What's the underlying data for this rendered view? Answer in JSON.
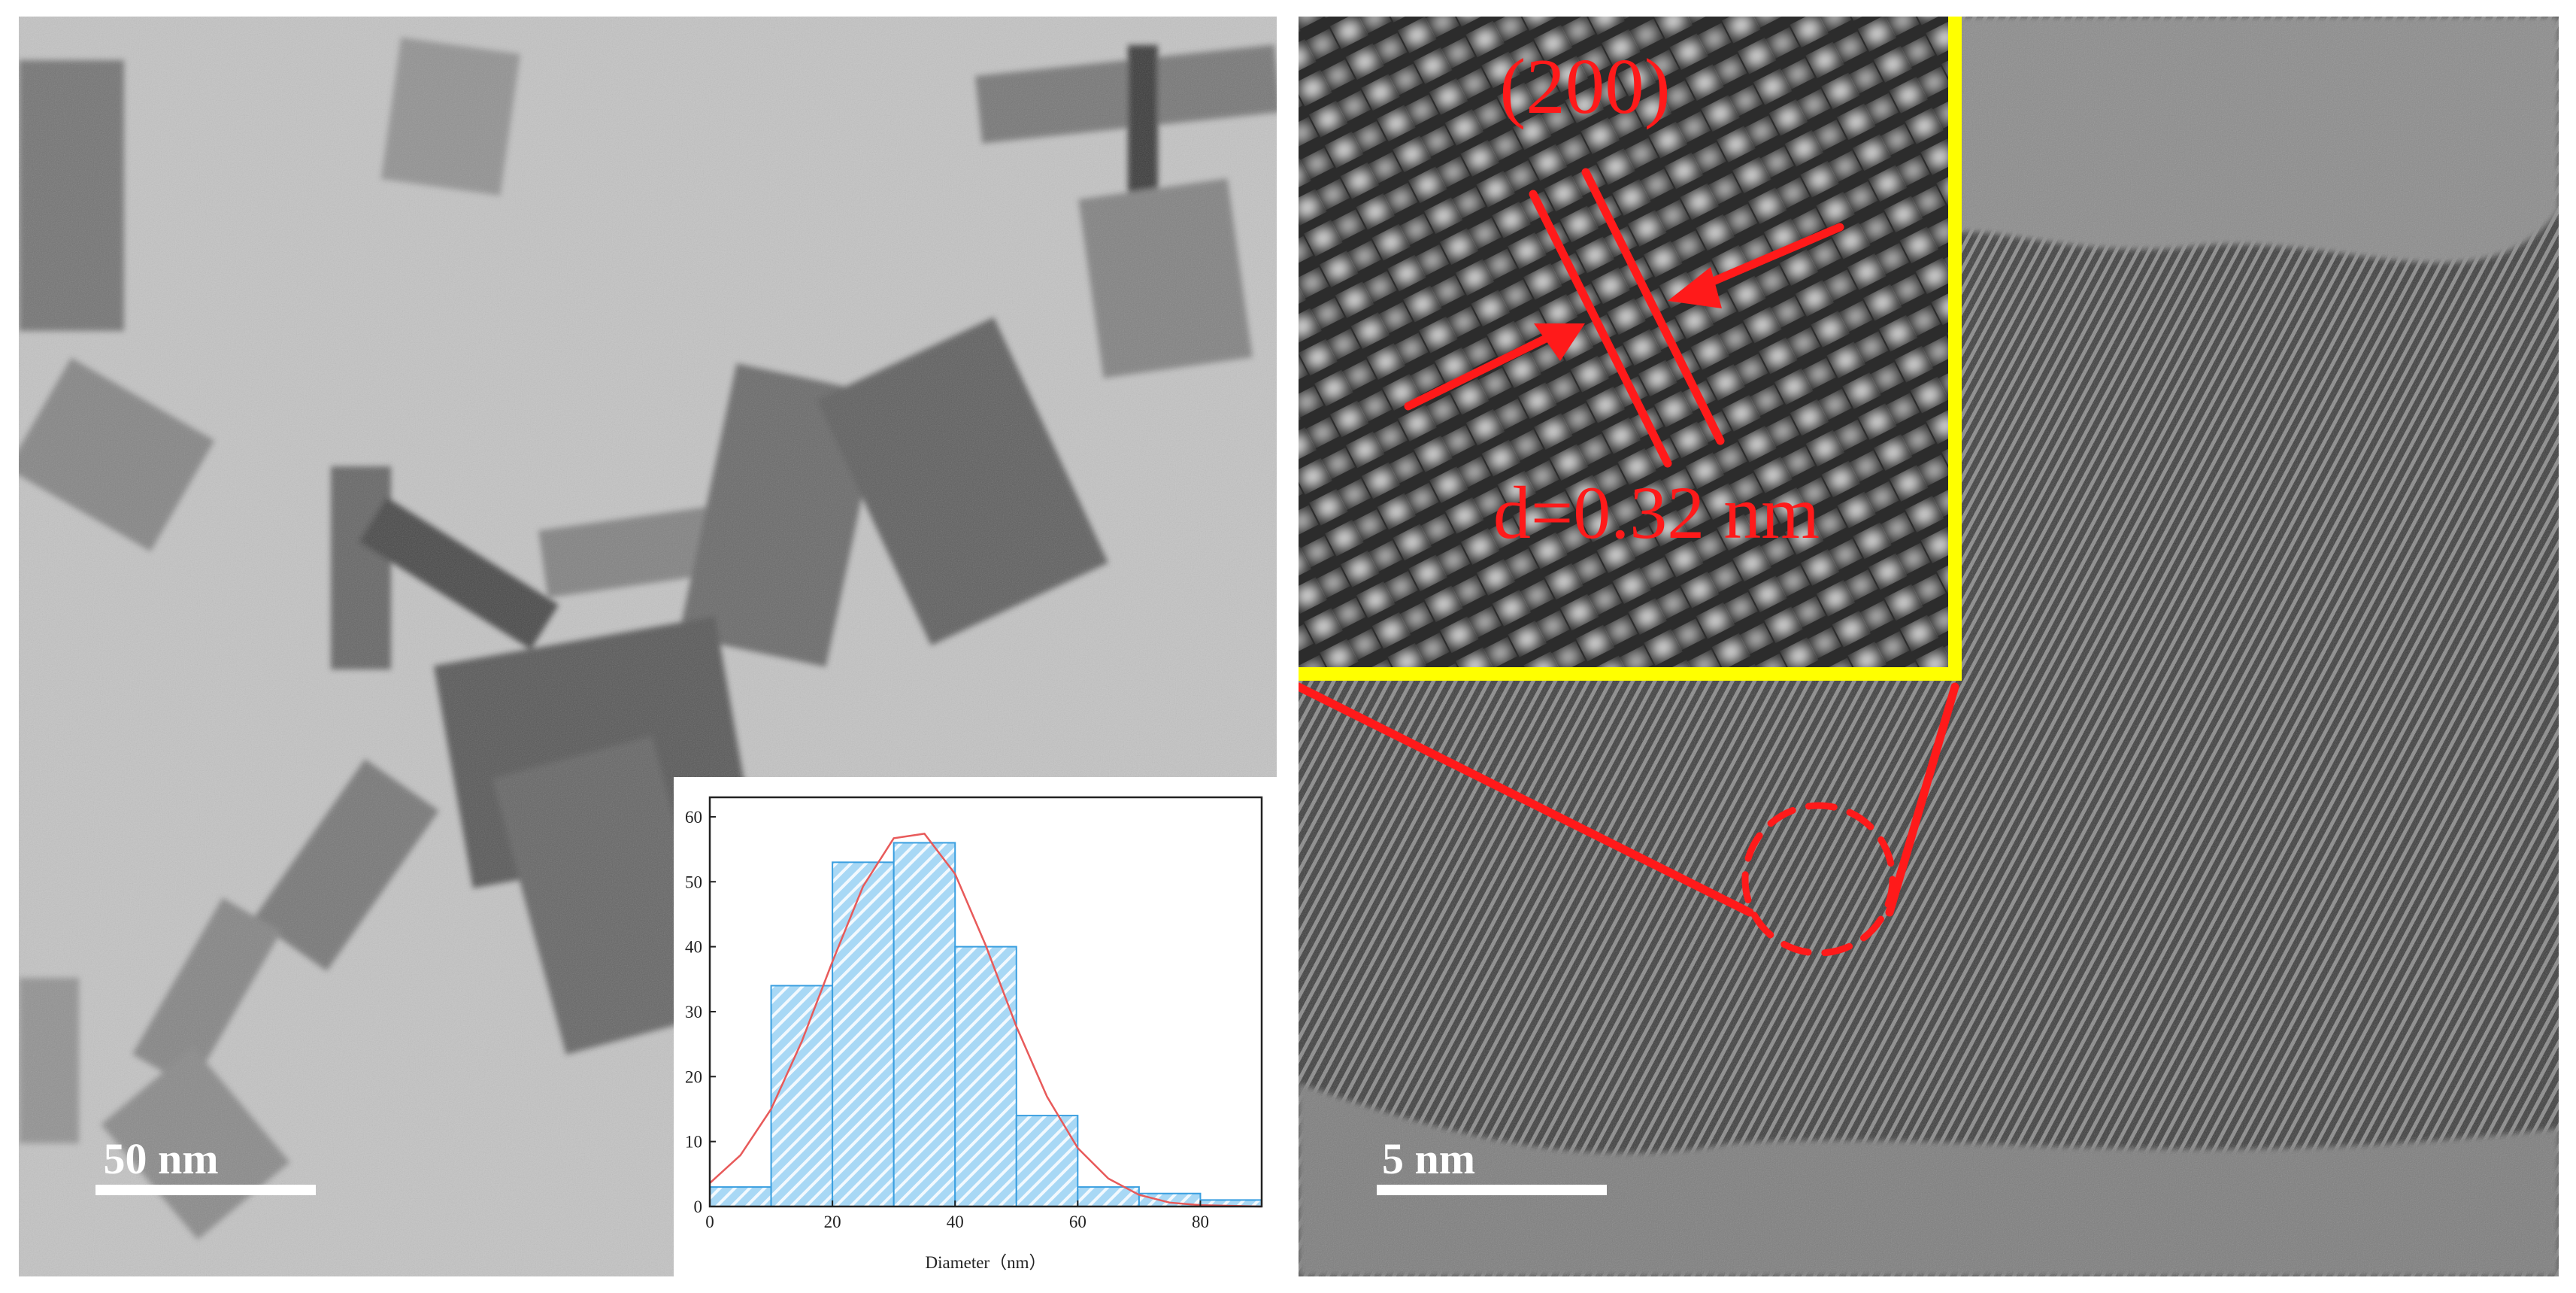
{
  "left_panel": {
    "scale_bar": "50 nm"
  },
  "right_panel": {
    "plane": "(200)",
    "d_spacing": "d=0.32 nm",
    "scale_bar": "5 nm"
  },
  "chart_data": {
    "type": "histogram",
    "xlabel": "Diameter（nm）",
    "bins": [
      0,
      10,
      20,
      30,
      40,
      50,
      60,
      70,
      80,
      90
    ],
    "values": [
      3,
      34,
      53,
      56,
      40,
      14,
      3,
      2,
      1
    ],
    "color": "#a8d8f5",
    "edge_color": "#3a9fe0",
    "fit": {
      "color": "#e85a5a",
      "x": [
        0,
        5,
        10,
        15,
        20,
        25,
        30,
        35,
        40,
        45,
        50,
        55,
        60,
        65,
        70,
        75,
        80,
        85,
        90
      ],
      "values": [
        3.6,
        7.9,
        15,
        25.4,
        37.7,
        49.3,
        56.7,
        57.4,
        51.2,
        40.2,
        27.7,
        16.9,
        9,
        4.3,
        1.8,
        0.6,
        0.2,
        0.1,
        0
      ]
    },
    "xlim": [
      0,
      90
    ],
    "xticks": [
      0,
      20,
      40,
      60,
      80
    ],
    "ylim": [
      0,
      63
    ],
    "yticks": [
      0,
      10,
      20,
      30,
      40,
      50,
      60
    ]
  }
}
